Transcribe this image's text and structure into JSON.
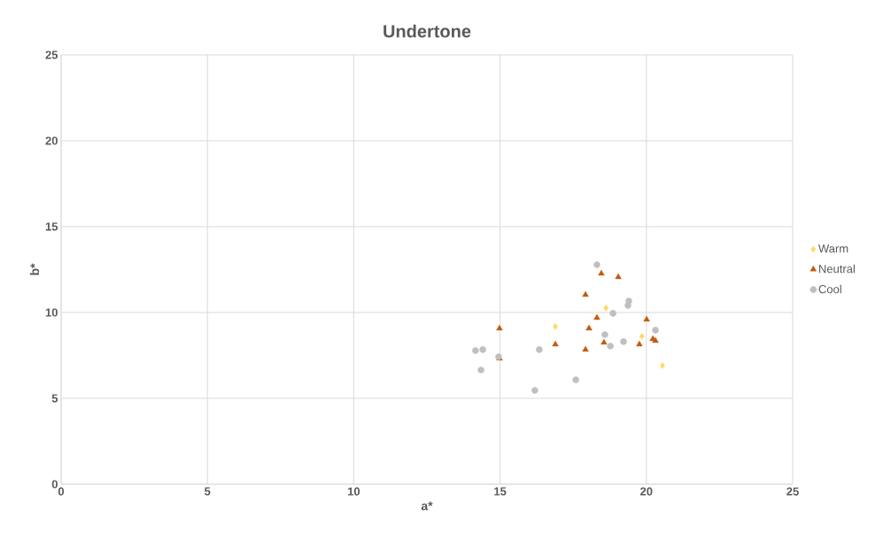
{
  "chart_data": {
    "type": "scatter",
    "title": "Undertone",
    "xlabel": "a*",
    "ylabel": "b*",
    "xlim": [
      0,
      25
    ],
    "ylim": [
      0,
      25
    ],
    "xticks": [
      0,
      5,
      10,
      15,
      20,
      25
    ],
    "yticks": [
      0,
      5,
      10,
      15,
      20,
      25
    ],
    "grid": true,
    "legend": "right",
    "series": [
      {
        "name": "Warm",
        "color": "#ffd966",
        "marker": "diamond",
        "x": [
          16.89,
          18.62,
          19.85,
          20.55
        ],
        "values": [
          9.18,
          10.26,
          8.61,
          6.91
        ]
      },
      {
        "name": "Neutral",
        "color": "#c55a11",
        "marker": "triangle",
        "x": [
          14.98,
          18.46,
          19.04,
          17.92,
          18.31,
          18.04,
          20.01,
          16.89,
          17.92,
          18.55,
          19.76,
          20.22,
          20.31,
          14.98
        ],
        "values": [
          9.07,
          12.27,
          12.06,
          11.03,
          9.69,
          9.07,
          9.59,
          8.14,
          7.84,
          8.25,
          8.14,
          8.45,
          8.35,
          7.32
        ]
      },
      {
        "name": "Cool",
        "color": "#bfbfbf",
        "marker": "circle",
        "x": [
          18.31,
          19.4,
          19.37,
          18.86,
          20.31,
          18.58,
          19.22,
          18.77,
          16.34,
          14.16,
          14.41,
          14.95,
          14.35,
          17.59,
          16.19
        ],
        "values": [
          12.78,
          10.67,
          10.41,
          9.95,
          8.97,
          8.71,
          8.3,
          8.04,
          7.84,
          7.78,
          7.84,
          7.42,
          6.65,
          6.08,
          5.46
        ]
      }
    ]
  }
}
